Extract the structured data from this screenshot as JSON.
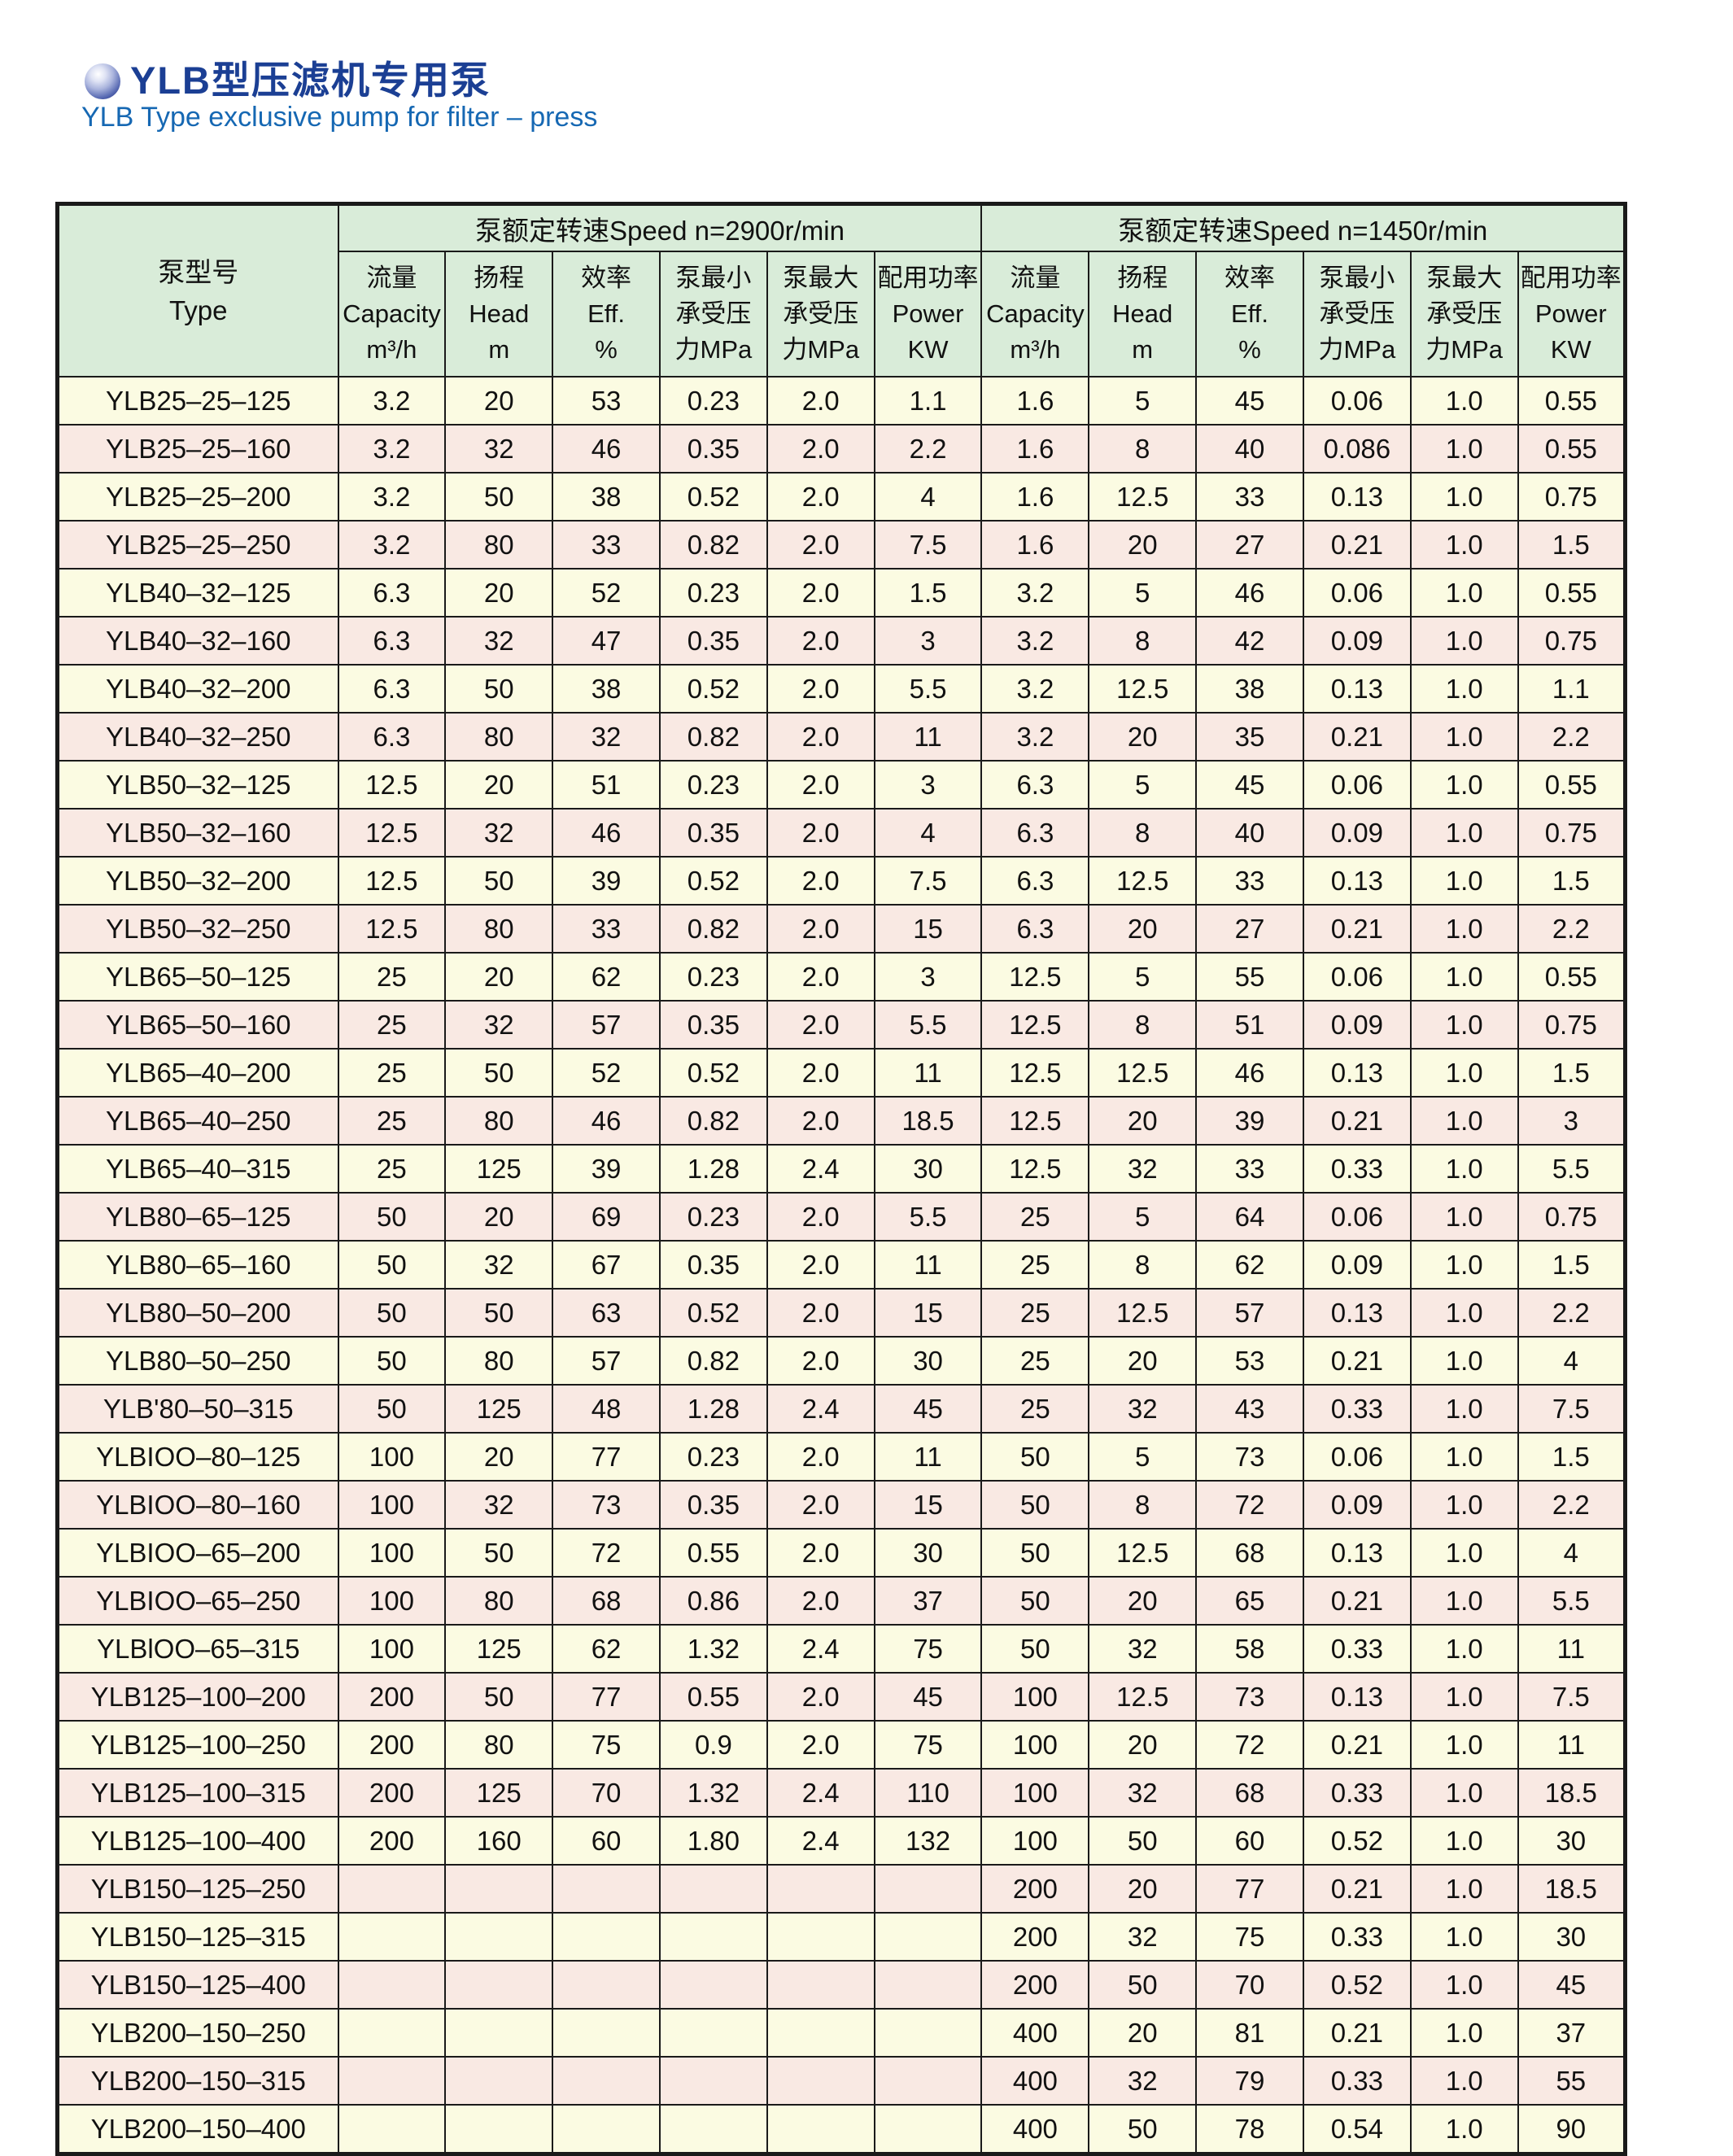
{
  "title": {
    "zh": "YLB型压滤机专用泵",
    "en": "YLB Type exclusive pump for filter – press"
  },
  "table": {
    "type_header": {
      "zh": "泵型号",
      "en": "Type"
    },
    "groups": [
      {
        "label": "泵额定转速Speed n=2900r/min"
      },
      {
        "label": "泵额定转速Speed n=1450r/min"
      }
    ],
    "sub_headers": [
      {
        "lines": [
          "流量",
          "Capacity",
          "m³/h"
        ]
      },
      {
        "lines": [
          "扬程",
          "Head",
          "m"
        ]
      },
      {
        "lines": [
          "效率",
          "Eff.",
          "%"
        ]
      },
      {
        "lines": [
          "泵最小",
          "承受压",
          "力MPa"
        ]
      },
      {
        "lines": [
          "泵最大",
          "承受压",
          "力MPa"
        ]
      },
      {
        "lines": [
          "配用功率",
          "Power",
          "KW"
        ]
      }
    ],
    "rows": [
      {
        "type": "YLB25–25–125",
        "v2900": [
          "3.2",
          "20",
          "53",
          "0.23",
          "2.0",
          "1.1"
        ],
        "v1450": [
          "1.6",
          "5",
          "45",
          "0.06",
          "1.0",
          "0.55"
        ]
      },
      {
        "type": "YLB25–25–160",
        "v2900": [
          "3.2",
          "32",
          "46",
          "0.35",
          "2.0",
          "2.2"
        ],
        "v1450": [
          "1.6",
          "8",
          "40",
          "0.086",
          "1.0",
          "0.55"
        ]
      },
      {
        "type": "YLB25–25–200",
        "v2900": [
          "3.2",
          "50",
          "38",
          "0.52",
          "2.0",
          "4"
        ],
        "v1450": [
          "1.6",
          "12.5",
          "33",
          "0.13",
          "1.0",
          "0.75"
        ]
      },
      {
        "type": "YLB25–25–250",
        "v2900": [
          "3.2",
          "80",
          "33",
          "0.82",
          "2.0",
          "7.5"
        ],
        "v1450": [
          "1.6",
          "20",
          "27",
          "0.21",
          "1.0",
          "1.5"
        ]
      },
      {
        "type": "YLB40–32–125",
        "v2900": [
          "6.3",
          "20",
          "52",
          "0.23",
          "2.0",
          "1.5"
        ],
        "v1450": [
          "3.2",
          "5",
          "46",
          "0.06",
          "1.0",
          "0.55"
        ]
      },
      {
        "type": "YLB40–32–160",
        "v2900": [
          "6.3",
          "32",
          "47",
          "0.35",
          "2.0",
          "3"
        ],
        "v1450": [
          "3.2",
          "8",
          "42",
          "0.09",
          "1.0",
          "0.75"
        ]
      },
      {
        "type": "YLB40–32–200",
        "v2900": [
          "6.3",
          "50",
          "38",
          "0.52",
          "2.0",
          "5.5"
        ],
        "v1450": [
          "3.2",
          "12.5",
          "38",
          "0.13",
          "1.0",
          "1.1"
        ]
      },
      {
        "type": "YLB40–32–250",
        "v2900": [
          "6.3",
          "80",
          "32",
          "0.82",
          "2.0",
          "11"
        ],
        "v1450": [
          "3.2",
          "20",
          "35",
          "0.21",
          "1.0",
          "2.2"
        ]
      },
      {
        "type": "YLB50–32–125",
        "v2900": [
          "12.5",
          "20",
          "51",
          "0.23",
          "2.0",
          "3"
        ],
        "v1450": [
          "6.3",
          "5",
          "45",
          "0.06",
          "1.0",
          "0.55"
        ]
      },
      {
        "type": "YLB50–32–160",
        "v2900": [
          "12.5",
          "32",
          "46",
          "0.35",
          "2.0",
          "4"
        ],
        "v1450": [
          "6.3",
          "8",
          "40",
          "0.09",
          "1.0",
          "0.75"
        ]
      },
      {
        "type": "YLB50–32–200",
        "v2900": [
          "12.5",
          "50",
          "39",
          "0.52",
          "2.0",
          "7.5"
        ],
        "v1450": [
          "6.3",
          "12.5",
          "33",
          "0.13",
          "1.0",
          "1.5"
        ]
      },
      {
        "type": "YLB50–32–250",
        "v2900": [
          "12.5",
          "80",
          "33",
          "0.82",
          "2.0",
          "15"
        ],
        "v1450": [
          "6.3",
          "20",
          "27",
          "0.21",
          "1.0",
          "2.2"
        ]
      },
      {
        "type": "YLB65–50–125",
        "v2900": [
          "25",
          "20",
          "62",
          "0.23",
          "2.0",
          "3"
        ],
        "v1450": [
          "12.5",
          "5",
          "55",
          "0.06",
          "1.0",
          "0.55"
        ]
      },
      {
        "type": "YLB65–50–160",
        "v2900": [
          "25",
          "32",
          "57",
          "0.35",
          "2.0",
          "5.5"
        ],
        "v1450": [
          "12.5",
          "8",
          "51",
          "0.09",
          "1.0",
          "0.75"
        ]
      },
      {
        "type": "YLB65–40–200",
        "v2900": [
          "25",
          "50",
          "52",
          "0.52",
          "2.0",
          "11"
        ],
        "v1450": [
          "12.5",
          "12.5",
          "46",
          "0.13",
          "1.0",
          "1.5"
        ]
      },
      {
        "type": "YLB65–40–250",
        "v2900": [
          "25",
          "80",
          "46",
          "0.82",
          "2.0",
          "18.5"
        ],
        "v1450": [
          "12.5",
          "20",
          "39",
          "0.21",
          "1.0",
          "3"
        ]
      },
      {
        "type": "YLB65–40–315",
        "v2900": [
          "25",
          "125",
          "39",
          "1.28",
          "2.4",
          "30"
        ],
        "v1450": [
          "12.5",
          "32",
          "33",
          "0.33",
          "1.0",
          "5.5"
        ]
      },
      {
        "type": "YLB80–65–125",
        "v2900": [
          "50",
          "20",
          "69",
          "0.23",
          "2.0",
          "5.5"
        ],
        "v1450": [
          "25",
          "5",
          "64",
          "0.06",
          "1.0",
          "0.75"
        ]
      },
      {
        "type": "YLB80–65–160",
        "v2900": [
          "50",
          "32",
          "67",
          "0.35",
          "2.0",
          "11"
        ],
        "v1450": [
          "25",
          "8",
          "62",
          "0.09",
          "1.0",
          "1.5"
        ]
      },
      {
        "type": "YLB80–50–200",
        "v2900": [
          "50",
          "50",
          "63",
          "0.52",
          "2.0",
          "15"
        ],
        "v1450": [
          "25",
          "12.5",
          "57",
          "0.13",
          "1.0",
          "2.2"
        ]
      },
      {
        "type": "YLB80–50–250",
        "v2900": [
          "50",
          "80",
          "57",
          "0.82",
          "2.0",
          "30"
        ],
        "v1450": [
          "25",
          "20",
          "53",
          "0.21",
          "1.0",
          "4"
        ]
      },
      {
        "type": "YLB'80–50–315",
        "v2900": [
          "50",
          "125",
          "48",
          "1.28",
          "2.4",
          "45"
        ],
        "v1450": [
          "25",
          "32",
          "43",
          "0.33",
          "1.0",
          "7.5"
        ]
      },
      {
        "type": "YLBIOO–80–125",
        "v2900": [
          "100",
          "20",
          "77",
          "0.23",
          "2.0",
          "11"
        ],
        "v1450": [
          "50",
          "5",
          "73",
          "0.06",
          "1.0",
          "1.5"
        ]
      },
      {
        "type": "YLBIOO–80–160",
        "v2900": [
          "100",
          "32",
          "73",
          "0.35",
          "2.0",
          "15"
        ],
        "v1450": [
          "50",
          "8",
          "72",
          "0.09",
          "1.0",
          "2.2"
        ]
      },
      {
        "type": "YLBIOO–65–200",
        "v2900": [
          "100",
          "50",
          "72",
          "0.55",
          "2.0",
          "30"
        ],
        "v1450": [
          "50",
          "12.5",
          "68",
          "0.13",
          "1.0",
          "4"
        ]
      },
      {
        "type": "YLBIOO–65–250",
        "v2900": [
          "100",
          "80",
          "68",
          "0.86",
          "2.0",
          "37"
        ],
        "v1450": [
          "50",
          "20",
          "65",
          "0.21",
          "1.0",
          "5.5"
        ]
      },
      {
        "type": "YLBlOO–65–315",
        "v2900": [
          "100",
          "125",
          "62",
          "1.32",
          "2.4",
          "75"
        ],
        "v1450": [
          "50",
          "32",
          "58",
          "0.33",
          "1.0",
          "11"
        ]
      },
      {
        "type": "YLB125–100–200",
        "v2900": [
          "200",
          "50",
          "77",
          "0.55",
          "2.0",
          "45"
        ],
        "v1450": [
          "100",
          "12.5",
          "73",
          "0.13",
          "1.0",
          "7.5"
        ]
      },
      {
        "type": "YLB125–100–250",
        "v2900": [
          "200",
          "80",
          "75",
          "0.9",
          "2.0",
          "75"
        ],
        "v1450": [
          "100",
          "20",
          "72",
          "0.21",
          "1.0",
          "11"
        ]
      },
      {
        "type": "YLB125–100–315",
        "v2900": [
          "200",
          "125",
          "70",
          "1.32",
          "2.4",
          "110"
        ],
        "v1450": [
          "100",
          "32",
          "68",
          "0.33",
          "1.0",
          "18.5"
        ]
      },
      {
        "type": "YLB125–100–400",
        "v2900": [
          "200",
          "160",
          "60",
          "1.80",
          "2.4",
          "132"
        ],
        "v1450": [
          "100",
          "50",
          "60",
          "0.52",
          "1.0",
          "30"
        ]
      },
      {
        "type": "YLB150–125–250",
        "v2900": [
          "",
          "",
          "",
          "",
          "",
          ""
        ],
        "v1450": [
          "200",
          "20",
          "77",
          "0.21",
          "1.0",
          "18.5"
        ]
      },
      {
        "type": "YLB150–125–315",
        "v2900": [
          "",
          "",
          "",
          "",
          "",
          ""
        ],
        "v1450": [
          "200",
          "32",
          "75",
          "0.33",
          "1.0",
          "30"
        ]
      },
      {
        "type": "YLB150–125–400",
        "v2900": [
          "",
          "",
          "",
          "",
          "",
          ""
        ],
        "v1450": [
          "200",
          "50",
          "70",
          "0.52",
          "1.0",
          "45"
        ]
      },
      {
        "type": "YLB200–150–250",
        "v2900": [
          "",
          "",
          "",
          "",
          "",
          ""
        ],
        "v1450": [
          "400",
          "20",
          "81",
          "0.21",
          "1.0",
          "37"
        ]
      },
      {
        "type": "YLB200–150–315",
        "v2900": [
          "",
          "",
          "",
          "",
          "",
          ""
        ],
        "v1450": [
          "400",
          "32",
          "79",
          "0.33",
          "1.0",
          "55"
        ]
      },
      {
        "type": "YLB200–150–400",
        "v2900": [
          "",
          "",
          "",
          "",
          "",
          ""
        ],
        "v1450": [
          "400",
          "50",
          "78",
          "0.54",
          "1.0",
          "90"
        ]
      }
    ]
  }
}
